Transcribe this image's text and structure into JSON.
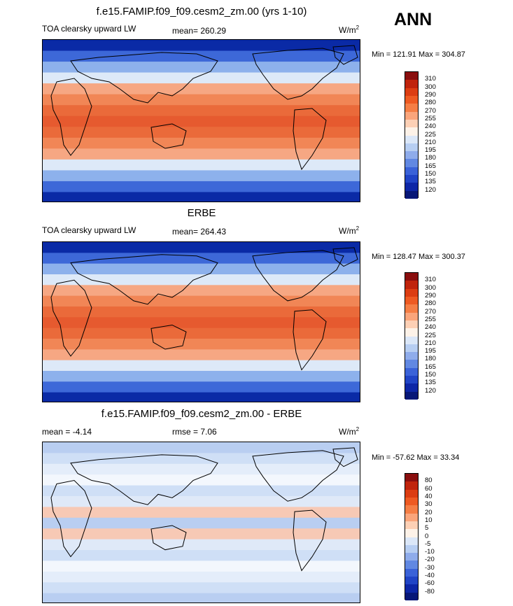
{
  "season": "ANN",
  "panels": [
    {
      "title": "f.e15.FAMIP.f09_f09.cesm2_zm.00 (yrs 1-10)",
      "left_label": "TOA clearsky upward LW",
      "mid_label": "mean= 260.29",
      "units": "W/m",
      "units_sup": "2",
      "minmax": "Min = 121.91 Max = 304.87",
      "colorbar": {
        "labels": [
          "310",
          "300",
          "290",
          "280",
          "270",
          "255",
          "240",
          "225",
          "210",
          "195",
          "180",
          "165",
          "150",
          "135",
          "120"
        ],
        "colors": [
          "#8a0e0e",
          "#c0240c",
          "#dc3d12",
          "#ee5a22",
          "#f57e45",
          "#faa57b",
          "#fdd0b5",
          "#fdf2e8",
          "#dbe7f8",
          "#b7cef2",
          "#8faceb",
          "#6188e2",
          "#3a62d8",
          "#2044c6",
          "#0d26a6",
          "#071777"
        ]
      },
      "map_colors": [
        "#0a2aa6",
        "#3d68d8",
        "#8db1ec",
        "#dde9f8",
        "#fbd6c1",
        "#f6a783",
        "#f18656",
        "#ea6a3a",
        "#e65a2f"
      ]
    },
    {
      "title": "ERBE",
      "left_label": "TOA clearsky upward LW",
      "mid_label": "mean= 264.43",
      "units": "W/m",
      "units_sup": "2",
      "minmax": "Min = 128.47 Max = 300.37",
      "colorbar": {
        "labels": [
          "310",
          "300",
          "290",
          "280",
          "270",
          "255",
          "240",
          "225",
          "210",
          "195",
          "180",
          "165",
          "150",
          "135",
          "120"
        ],
        "colors": [
          "#8a0e0e",
          "#c0240c",
          "#dc3d12",
          "#ee5a22",
          "#f57e45",
          "#faa57b",
          "#fdd0b5",
          "#fdf2e8",
          "#dbe7f8",
          "#b7cef2",
          "#8faceb",
          "#6188e2",
          "#3a62d8",
          "#2044c6",
          "#0d26a6",
          "#071777"
        ]
      },
      "map_colors": [
        "#0a2aa6",
        "#3d68d8",
        "#8db1ec",
        "#dde9f8",
        "#fbd6c1",
        "#f6a783",
        "#f18656",
        "#ea6a3a",
        "#e65a2f"
      ]
    },
    {
      "title": "f.e15.FAMIP.f09_f09.cesm2_zm.00 - ERBE",
      "left_label": "mean =  -4.14",
      "mid_label": "rmse =   7.06",
      "units": "W/m",
      "units_sup": "2",
      "minmax": "Min = -57.62 Max =  33.34",
      "colorbar": {
        "labels": [
          "80",
          "60",
          "40",
          "30",
          "20",
          "10",
          "5",
          "0",
          "-5",
          "-10",
          "-20",
          "-30",
          "-40",
          "-60",
          "-80"
        ],
        "colors": [
          "#8a0e0e",
          "#c0240c",
          "#dc3d12",
          "#ee5a22",
          "#f57e45",
          "#faa57b",
          "#fdd0b5",
          "#fdf2e8",
          "#dbe7f8",
          "#b7cef2",
          "#8faceb",
          "#6188e2",
          "#3a62d8",
          "#2044c6",
          "#0d26a6",
          "#071777"
        ]
      },
      "map_colors": [
        "#b9cef1",
        "#cfdff6",
        "#e4edfa",
        "#f3f7fd",
        "#e4edfa",
        "#cfdff6",
        "#dfe9f8",
        "#f7c9b5",
        "#b9cef1"
      ]
    }
  ],
  "chart_data": [
    {
      "type": "heatmap",
      "title": "f.e15.FAMIP.f09_f09.cesm2_zm.00 (yrs 1-10)",
      "field": "TOA clearsky upward LW",
      "mean": 260.29,
      "units": "W/m2",
      "min": 121.91,
      "max": 304.87,
      "levels": [
        120,
        135,
        150,
        165,
        180,
        195,
        210,
        225,
        240,
        255,
        270,
        280,
        290,
        300,
        310
      ]
    },
    {
      "type": "heatmap",
      "title": "ERBE",
      "field": "TOA clearsky upward LW",
      "mean": 264.43,
      "units": "W/m2",
      "min": 128.47,
      "max": 300.37,
      "levels": [
        120,
        135,
        150,
        165,
        180,
        195,
        210,
        225,
        240,
        255,
        270,
        280,
        290,
        300,
        310
      ]
    },
    {
      "type": "heatmap",
      "title": "f.e15.FAMIP.f09_f09.cesm2_zm.00 - ERBE",
      "mean": -4.14,
      "rmse": 7.06,
      "units": "W/m2",
      "min": -57.62,
      "max": 33.34,
      "levels": [
        -80,
        -60,
        -40,
        -30,
        -20,
        -10,
        -5,
        0,
        5,
        10,
        20,
        30,
        40,
        60,
        80
      ]
    }
  ]
}
